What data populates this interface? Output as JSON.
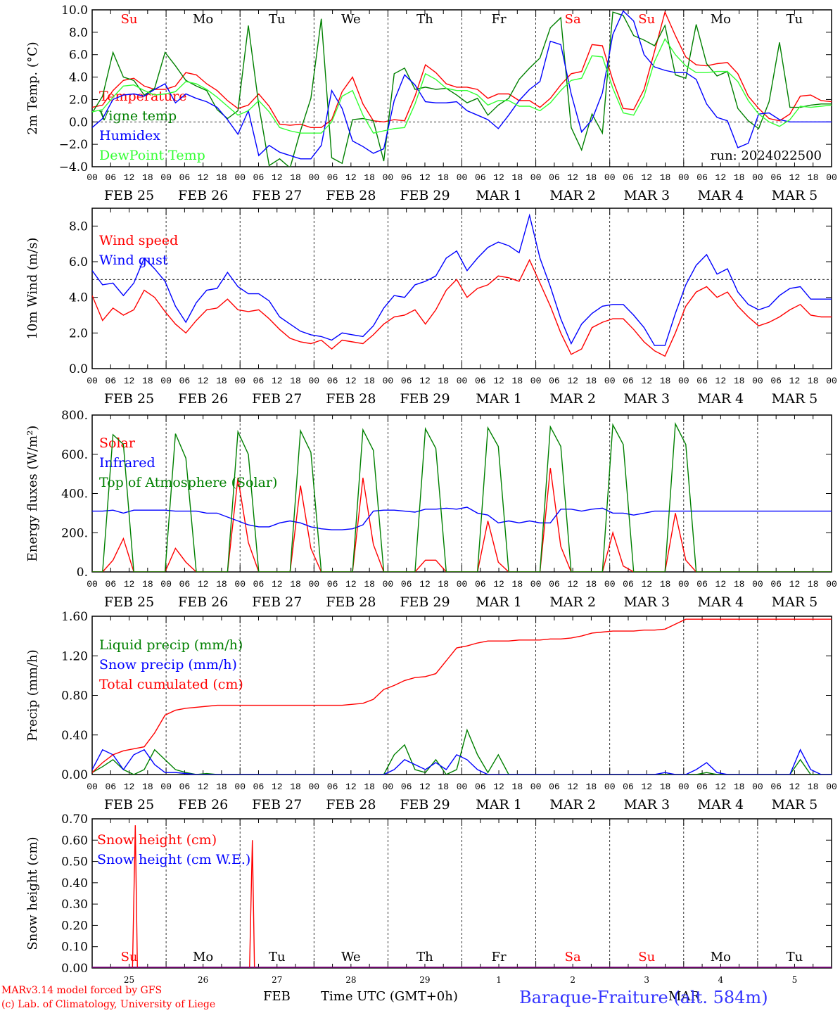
{
  "footer": {
    "model": "MARv3.14 model forced by GFS",
    "lab": "(c) Lab. of Climatology, University of Liege",
    "station": "Baraque-Fraiture (alt. 584m)",
    "time_label": "Time UTC (GMT+0h)",
    "month_feb": "FEB",
    "month_mar": "MAR"
  },
  "hour_ticks": [
    "00",
    "06",
    "12",
    "18"
  ],
  "date_labels": [
    "FEB 25",
    "FEB 26",
    "FEB 27",
    "FEB 28",
    "FEB 29",
    "MAR  1",
    "MAR  2",
    "MAR  3",
    "MAR  4",
    "MAR  5"
  ],
  "weekdays": [
    "Su",
    "Mo",
    "Tu",
    "We",
    "Th",
    "Fr",
    "Sa",
    "Su",
    "Mo",
    "Tu"
  ],
  "weekend_color_flags": [
    true,
    false,
    false,
    false,
    false,
    false,
    true,
    true,
    false,
    false
  ],
  "day_numbers": [
    "25",
    "26",
    "27",
    "28",
    "29",
    "1",
    "2",
    "3",
    "4",
    "5"
  ],
  "colors": {
    "red": "#ff0000",
    "green": "#008000",
    "blue": "#0000ff",
    "lightgreen": "#33ff33",
    "axis": "#000000"
  },
  "chart_data": [
    {
      "type": "line",
      "id": "temp",
      "ylabel": "2m Temp. (°C)",
      "ylim": [
        -4,
        10
      ],
      "yticks": [
        "10.0",
        "8.0",
        "6.0",
        "4.0",
        "2.0",
        "0.0",
        "−2.0",
        "−4.0"
      ],
      "ytick_values": [
        10,
        8,
        6,
        4,
        2,
        0,
        -2,
        -4
      ],
      "annotation": "run: 2024022500",
      "hline": 0,
      "x_hours_step": 6,
      "series": [
        {
          "name": "Temperature",
          "color": "#ff0000",
          "values": [
            1.3,
            1.5,
            2.8,
            3.7,
            3.9,
            3.2,
            2.9,
            2.9,
            3.2,
            4.4,
            4.2,
            3.4,
            2.8,
            1.9,
            1.2,
            1.5,
            2.5,
            1.4,
            -0.2,
            -0.3,
            -0.2,
            -0.5,
            -0.5,
            0.2,
            2.7,
            4.0,
            1.6,
            0.1,
            0.0,
            0.2,
            0.1,
            2.3,
            5.1,
            4.4,
            3.4,
            3.1,
            3.1,
            2.9,
            2.1,
            2.5,
            2.5,
            1.9,
            1.9,
            1.3,
            2.1,
            3.3,
            4.3,
            4.5,
            6.9,
            6.8,
            3.7,
            1.2,
            1.1,
            2.9,
            6.3,
            9.8,
            7.7,
            5.8,
            5.1,
            5.0,
            5.2,
            5.3,
            4.3,
            2.3,
            1.2,
            0.3,
            0.1,
            0.7,
            2.3,
            2.4,
            1.9,
            1.8
          ]
        },
        {
          "name": "Vigne temp",
          "color": "#008000",
          "values": [
            0.8,
            2.3,
            6.2,
            4.0,
            3.7,
            2.4,
            3.0,
            6.2,
            5.0,
            3.7,
            3.2,
            2.8,
            1.1,
            0.3,
            1.0,
            8.6,
            1.5,
            -3.9,
            -3.3,
            -4.1,
            -0.8,
            2.1,
            9.2,
            -3.2,
            -3.7,
            0.2,
            0.3,
            0.1,
            -3.5,
            4.3,
            4.8,
            2.9,
            3.1,
            2.9,
            3.0,
            2.4,
            1.7,
            2.1,
            0.6,
            1.5,
            2.1,
            3.8,
            4.8,
            5.7,
            8.4,
            9.3,
            -0.5,
            -2.5,
            0.7,
            -1.0,
            9.8,
            9.5,
            7.7,
            7.3,
            6.8,
            8.6,
            4.2,
            3.9,
            8.7,
            5.2,
            4.1,
            4.5,
            1.2,
            0.1,
            -0.6,
            1.8,
            7.1,
            1.3,
            1.3,
            1.5,
            1.6,
            1.6
          ]
        },
        {
          "name": "Humidex",
          "color": "#0000ff",
          "values": [
            -0.5,
            0.3,
            2.0,
            2.4,
            2.5,
            2.3,
            2.9,
            3.4,
            1.7,
            2.5,
            2.1,
            1.8,
            1.3,
            0.2,
            -1.1,
            1.0,
            -3.0,
            -2.1,
            -2.7,
            -3.0,
            -3.3,
            -3.3,
            -2.1,
            2.8,
            1.2,
            -1.7,
            -2.2,
            -2.8,
            -2.4,
            1.9,
            4.2,
            3.3,
            1.8,
            1.7,
            1.7,
            1.8,
            1.0,
            0.6,
            0.2,
            -0.6,
            0.6,
            1.9,
            2.9,
            3.6,
            7.2,
            6.9,
            2.5,
            -0.9,
            0.2,
            2.6,
            7.8,
            9.9,
            9.0,
            6.0,
            4.9,
            4.6,
            4.4,
            4.4,
            3.8,
            1.6,
            0.4,
            0.1,
            -2.3,
            -1.9,
            0.7,
            0.8,
            0.2,
            0.0,
            0.0,
            0.0,
            0.0,
            0.0
          ]
        },
        {
          "name": "DewPoint Temp",
          "color": "#33ff33",
          "values": [
            0.9,
            1.1,
            2.2,
            3.2,
            3.3,
            2.8,
            2.4,
            2.5,
            2.7,
            3.6,
            3.4,
            2.9,
            2.2,
            1.4,
            0.6,
            1.0,
            1.9,
            0.9,
            -0.5,
            -0.8,
            -1.0,
            -1.0,
            -1.0,
            0.0,
            2.3,
            2.8,
            0.6,
            -1.0,
            -0.8,
            -0.6,
            -0.5,
            1.6,
            4.3,
            3.8,
            3.0,
            2.8,
            2.8,
            2.4,
            1.5,
            1.9,
            1.9,
            1.4,
            1.4,
            1.0,
            1.7,
            2.8,
            3.7,
            3.9,
            5.9,
            5.8,
            3.0,
            0.8,
            0.6,
            2.3,
            5.4,
            7.4,
            6.0,
            5.0,
            4.4,
            4.4,
            4.5,
            4.5,
            3.6,
            1.9,
            0.7,
            0.0,
            -0.4,
            0.2,
            1.4,
            1.3,
            1.4,
            1.5
          ]
        }
      ]
    },
    {
      "type": "line",
      "id": "wind",
      "ylabel": "10m Wind (m/s)",
      "ylim": [
        0,
        9
      ],
      "yticks": [
        "8.0",
        "6.0",
        "4.0",
        "2.0",
        "0.0"
      ],
      "ytick_values": [
        8,
        6,
        4,
        2,
        0
      ],
      "hline": 5,
      "x_hours_step": 6,
      "series": [
        {
          "name": "Wind speed",
          "color": "#ff0000",
          "values": [
            4.1,
            2.7,
            3.4,
            3.0,
            3.3,
            4.4,
            4.0,
            3.2,
            2.5,
            2.0,
            2.7,
            3.3,
            3.4,
            3.9,
            3.3,
            3.2,
            3.3,
            2.8,
            2.2,
            1.7,
            1.5,
            1.4,
            1.6,
            1.1,
            1.6,
            1.5,
            1.4,
            1.9,
            2.5,
            2.9,
            3.0,
            3.3,
            2.5,
            3.3,
            4.4,
            5.0,
            4.0,
            4.5,
            4.7,
            5.2,
            5.1,
            4.9,
            6.1,
            4.8,
            3.5,
            2.0,
            0.8,
            1.1,
            2.3,
            2.6,
            2.8,
            2.8,
            2.2,
            1.5,
            1.0,
            0.7,
            2.0,
            3.5,
            4.3,
            4.6,
            4.0,
            4.3,
            3.5,
            2.9,
            2.4,
            2.6,
            2.9,
            3.3,
            3.6,
            3.0,
            2.9,
            2.9
          ]
        },
        {
          "name": "Wind gust",
          "color": "#0000ff",
          "values": [
            5.5,
            4.7,
            4.8,
            4.1,
            4.8,
            6.2,
            5.6,
            4.9,
            3.5,
            2.6,
            3.7,
            4.4,
            4.5,
            5.4,
            4.6,
            4.2,
            4.2,
            3.8,
            2.9,
            2.5,
            2.1,
            1.9,
            1.8,
            1.6,
            2.0,
            1.9,
            1.8,
            2.4,
            3.4,
            4.1,
            4.0,
            4.7,
            4.9,
            5.2,
            6.2,
            6.6,
            5.5,
            6.2,
            6.8,
            7.1,
            6.9,
            6.5,
            8.6,
            6.2,
            4.6,
            2.8,
            1.4,
            2.5,
            3.1,
            3.5,
            3.6,
            3.6,
            3.0,
            2.3,
            1.3,
            1.3,
            3.1,
            4.7,
            5.8,
            6.4,
            5.3,
            5.6,
            4.3,
            3.6,
            3.3,
            3.5,
            4.1,
            4.5,
            4.6,
            3.9,
            3.9,
            3.9
          ]
        }
      ]
    },
    {
      "type": "line",
      "id": "energy",
      "ylabel": "Energy fluxes (W/m²)",
      "ylim": [
        0,
        800
      ],
      "yticks": [
        "800.",
        "600.",
        "400.",
        "200.",
        "0."
      ],
      "ytick_values": [
        800,
        600,
        400,
        200,
        0
      ],
      "x_hours_step": 6,
      "series": [
        {
          "name": "Solar",
          "color": "#ff0000",
          "values": [
            0,
            0,
            60,
            170,
            0,
            0,
            0,
            0,
            120,
            50,
            0,
            0,
            0,
            0,
            480,
            150,
            0,
            0,
            0,
            0,
            440,
            120,
            0,
            0,
            0,
            0,
            480,
            140,
            0,
            0,
            0,
            0,
            60,
            60,
            0,
            0,
            0,
            0,
            260,
            50,
            0,
            0,
            0,
            0,
            530,
            130,
            0,
            0,
            0,
            0,
            200,
            30,
            0,
            0,
            0,
            0,
            300,
            60,
            0,
            0,
            0,
            0,
            0,
            0,
            0,
            0,
            0,
            0,
            0,
            0,
            0,
            0
          ]
        },
        {
          "name": "Infrared",
          "color": "#0000ff",
          "values": [
            310,
            310,
            315,
            300,
            315,
            315,
            315,
            315,
            310,
            310,
            310,
            300,
            300,
            280,
            260,
            240,
            230,
            230,
            250,
            260,
            250,
            230,
            220,
            215,
            215,
            220,
            240,
            310,
            315,
            315,
            310,
            305,
            320,
            320,
            325,
            320,
            330,
            300,
            290,
            250,
            260,
            250,
            260,
            250,
            250,
            320,
            320,
            310,
            320,
            325,
            300,
            300,
            290,
            300,
            310,
            310,
            310,
            310,
            310,
            310,
            310,
            310,
            310,
            310,
            310,
            310,
            310,
            310,
            310,
            310,
            310,
            310
          ]
        },
        {
          "name": "Top of Atmosphere (Solar)",
          "color": "#008000",
          "values": [
            0,
            0,
            700,
            650,
            0,
            0,
            0,
            0,
            705,
            580,
            0,
            0,
            0,
            0,
            715,
            600,
            0,
            0,
            0,
            0,
            720,
            610,
            0,
            0,
            0,
            0,
            725,
            620,
            0,
            0,
            0,
            0,
            730,
            630,
            0,
            0,
            0,
            0,
            735,
            640,
            0,
            0,
            0,
            0,
            740,
            640,
            0,
            0,
            0,
            0,
            750,
            650,
            0,
            0,
            0,
            0,
            755,
            650,
            0,
            0,
            0,
            0,
            0,
            0,
            0,
            0,
            0,
            0,
            0,
            0,
            0,
            0
          ]
        }
      ]
    },
    {
      "type": "line",
      "id": "precip",
      "ylabel": "Precip (mm/h)",
      "ylim": [
        0,
        1.6
      ],
      "yticks": [
        "1.60",
        "1.20",
        "0.80",
        "0.40",
        "0.00"
      ],
      "ytick_values": [
        1.6,
        1.2,
        0.8,
        0.4,
        0
      ],
      "x_hours_step": 6,
      "series": [
        {
          "name": "Liquid precip (mm/h)",
          "color": "#008000",
          "values": [
            0.02,
            0.08,
            0.15,
            0.05,
            0.0,
            0.05,
            0.25,
            0.15,
            0.05,
            0.02,
            0.0,
            0.01,
            0.0,
            0.0,
            0.0,
            0.0,
            0.0,
            0.0,
            0.0,
            0.0,
            0.0,
            0.0,
            0.0,
            0.0,
            0.0,
            0.0,
            0.0,
            0.0,
            0.0,
            0.2,
            0.3,
            0.05,
            0.02,
            0.15,
            0.0,
            0.05,
            0.45,
            0.2,
            0.02,
            0.2,
            0.0,
            0.0,
            0.0,
            0.0,
            0.0,
            0.0,
            0.0,
            0.0,
            0.0,
            0.0,
            0.0,
            0.0,
            0.0,
            0.0,
            0.0,
            0.0,
            0.0,
            0.0,
            0.0,
            0.02,
            0.0,
            0.0,
            0.0,
            0.0,
            0.0,
            0.0,
            0.0,
            0.0,
            0.15,
            0.0,
            0.0,
            0.0
          ]
        },
        {
          "name": "Snow precip (mm/h)",
          "color": "#0000ff",
          "values": [
            0.05,
            0.25,
            0.2,
            0.05,
            0.2,
            0.25,
            0.1,
            0.02,
            0.02,
            0.01,
            0.0,
            0.0,
            0.0,
            0.0,
            0.0,
            0.0,
            0.0,
            0.0,
            0.0,
            0.0,
            0.0,
            0.0,
            0.0,
            0.0,
            0.0,
            0.0,
            0.0,
            0.0,
            0.0,
            0.05,
            0.15,
            0.1,
            0.05,
            0.12,
            0.05,
            0.2,
            0.15,
            0.05,
            0.0,
            0.0,
            0.0,
            0.0,
            0.0,
            0.0,
            0.0,
            0.0,
            0.0,
            0.0,
            0.0,
            0.0,
            0.0,
            0.0,
            0.0,
            0.0,
            0.0,
            0.02,
            0.0,
            0.0,
            0.05,
            0.12,
            0.02,
            0.0,
            0.0,
            0.0,
            0.0,
            0.0,
            0.0,
            0.0,
            0.25,
            0.05,
            0.0,
            0.0
          ]
        },
        {
          "name": "Total cumulated (cm)",
          "color": "#ff0000",
          "values": [
            0.02,
            0.12,
            0.2,
            0.24,
            0.26,
            0.28,
            0.42,
            0.6,
            0.65,
            0.67,
            0.68,
            0.69,
            0.7,
            0.7,
            0.7,
            0.7,
            0.7,
            0.7,
            0.7,
            0.7,
            0.7,
            0.7,
            0.7,
            0.7,
            0.7,
            0.71,
            0.72,
            0.76,
            0.86,
            0.9,
            0.95,
            0.98,
            0.99,
            1.02,
            1.15,
            1.28,
            1.3,
            1.33,
            1.35,
            1.35,
            1.35,
            1.36,
            1.36,
            1.36,
            1.37,
            1.37,
            1.38,
            1.4,
            1.43,
            1.44,
            1.45,
            1.45,
            1.45,
            1.46,
            1.46,
            1.47,
            1.52,
            1.57,
            1.57,
            1.57,
            1.57,
            1.57,
            1.57,
            1.57,
            1.57,
            1.57,
            1.57,
            1.57,
            1.57,
            1.57,
            1.57,
            1.57
          ]
        }
      ]
    },
    {
      "type": "line",
      "id": "snow",
      "ylabel": "Snow height (cm)",
      "ylim": [
        0,
        0.7
      ],
      "yticks": [
        "0.70",
        "0.60",
        "0.50",
        "0.40",
        "0.30",
        "0.20",
        "0.10",
        "0.00"
      ],
      "ytick_values": [
        0.7,
        0.6,
        0.5,
        0.4,
        0.3,
        0.2,
        0.1,
        0
      ],
      "x_hours_step": 6,
      "series": [
        {
          "name": "Snow height (cm)",
          "color": "#ff0000",
          "spikes": [
            {
              "x_hours": 14,
              "value": 0.67
            },
            {
              "x_hours": 52,
              "value": 0.6
            }
          ]
        },
        {
          "name": "Snow height (cm W.E.)",
          "color": "#0000ff",
          "spikes": []
        }
      ]
    }
  ]
}
